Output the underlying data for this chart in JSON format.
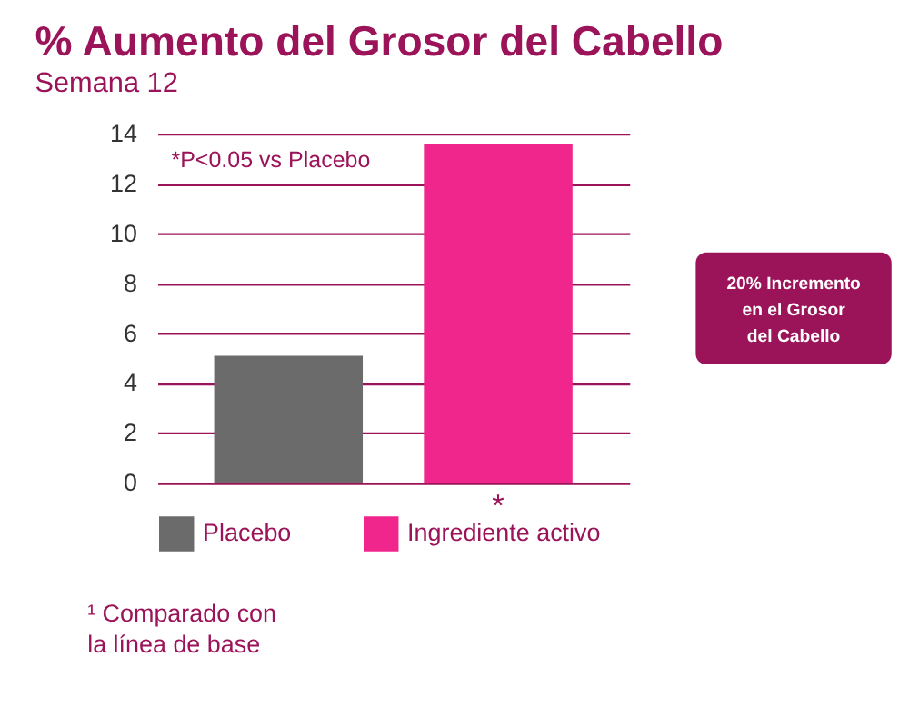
{
  "chart_data": {
    "type": "bar",
    "title": "% Aumento del Grosor del Cabello",
    "subtitle": "Semana 12",
    "categories": [
      null,
      null
    ],
    "series": [
      {
        "name": "Placebo",
        "color": "#6b6b6b",
        "values": [
          5.1,
          null
        ]
      },
      {
        "name": "Ingrediente activo",
        "color": "#f0268c",
        "values": [
          null,
          13.6
        ]
      }
    ],
    "ylim": [
      0,
      14
    ],
    "yticks": [
      0,
      2,
      4,
      6,
      8,
      10,
      12,
      14
    ],
    "grid": "y",
    "legend": "bottom",
    "tick_labels": "y",
    "annotations": [
      "*P<0.05 vs Placebo",
      "*",
      "20% Incremento\nen el Grosor\ndel Cabello",
      "¹ Comparado con\nla línea de base"
    ]
  }
}
